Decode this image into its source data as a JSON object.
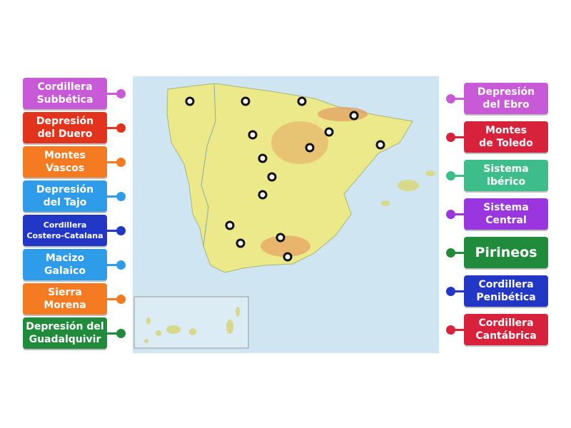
{
  "left_labels": [
    {
      "lines": [
        "Cordillera",
        "Subbética"
      ],
      "color": "#c85ad8"
    },
    {
      "lines": [
        "Depresión",
        "del Duero"
      ],
      "color": "#e2341d"
    },
    {
      "lines": [
        "Montes",
        "Vascos"
      ],
      "color": "#f47b21"
    },
    {
      "lines": [
        "Depresión",
        "del Tajo"
      ],
      "color": "#2f9ce9"
    },
    {
      "lines": [
        "Cordillera",
        "Costero-Catalana"
      ],
      "color": "#2337c6"
    },
    {
      "lines": [
        "Macizo",
        "Galaico"
      ],
      "color": "#2f9ce9"
    },
    {
      "lines": [
        "Sierra",
        "Morena"
      ],
      "color": "#f47b21"
    },
    {
      "lines": [
        "Depresión del",
        "Guadalquivir"
      ],
      "color": "#1f8b3b"
    }
  ],
  "right_labels": [
    {
      "lines": [
        "Depresión",
        "del Ebro"
      ],
      "color": "#c85ad8"
    },
    {
      "lines": [
        "Montes",
        "de Toledo"
      ],
      "color": "#d8213a"
    },
    {
      "lines": [
        "Sistema",
        "Ibérico"
      ],
      "color": "#3dbd8a"
    },
    {
      "lines": [
        "Sistema",
        "Central"
      ],
      "color": "#9a36e0"
    },
    {
      "lines": [
        "Pirineos"
      ],
      "color": "#1f8b3b"
    },
    {
      "lines": [
        "Cordillera",
        "Penibética"
      ],
      "color": "#2337c6"
    },
    {
      "lines": [
        "Cordillera",
        "Cantábrica"
      ],
      "color": "#d8213a"
    }
  ]
}
